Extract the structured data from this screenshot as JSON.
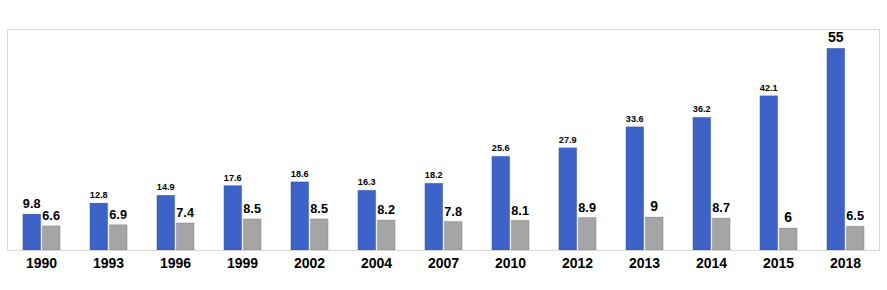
{
  "chart_data": {
    "type": "bar",
    "categories": [
      "1990",
      "1993",
      "1996",
      "1999",
      "2002",
      "2004",
      "2007",
      "2010",
      "2012",
      "2013",
      "2014",
      "2015",
      "2018"
    ],
    "series": [
      {
        "color": "#3d63c8",
        "values": [
          9.8,
          12.8,
          14.9,
          17.6,
          18.6,
          16.3,
          18.2,
          25.6,
          27.9,
          33.6,
          36.2,
          42.1,
          55
        ]
      },
      {
        "color": "#a5a5a5",
        "values": [
          6.6,
          6.9,
          7.4,
          8.5,
          8.5,
          8.2,
          7.8,
          8.1,
          8.9,
          9,
          8.7,
          6,
          6.5
        ]
      }
    ],
    "ylim": [
      0,
      60
    ],
    "grid": false,
    "data_labels": true,
    "tick_labels": "x",
    "legend": "none"
  }
}
